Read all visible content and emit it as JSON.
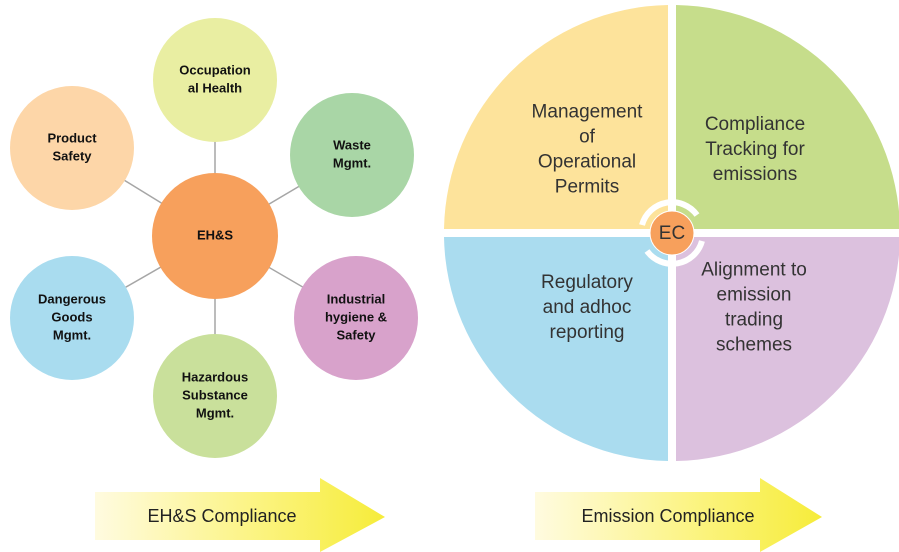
{
  "left_diagram": {
    "center": {
      "lines": [
        "EH&S"
      ]
    },
    "nodes": [
      {
        "lines": [
          "Occupation",
          "al Health"
        ]
      },
      {
        "lines": [
          "Waste",
          "Mgmt."
        ]
      },
      {
        "lines": [
          "Industrial",
          "hygiene &",
          "Safety"
        ]
      },
      {
        "lines": [
          "Hazardous",
          "Substance",
          "Mgmt."
        ]
      },
      {
        "lines": [
          "Dangerous",
          "Goods",
          "Mgmt."
        ]
      },
      {
        "lines": [
          "Product",
          "Safety"
        ]
      }
    ],
    "arrow_label": "EH&S Compliance"
  },
  "right_diagram": {
    "center": "EC",
    "quadrants": [
      {
        "lines": [
          "Management",
          "of",
          "Operational",
          "Permits"
        ]
      },
      {
        "lines": [
          "Compliance",
          "Tracking for",
          "emissions"
        ]
      },
      {
        "lines": [
          "Alignment to",
          "emission",
          "trading",
          "schemes"
        ]
      },
      {
        "lines": [
          "Regulatory",
          "and adhoc",
          "reporting"
        ]
      }
    ],
    "arrow_label": "Emission Compliance"
  }
}
